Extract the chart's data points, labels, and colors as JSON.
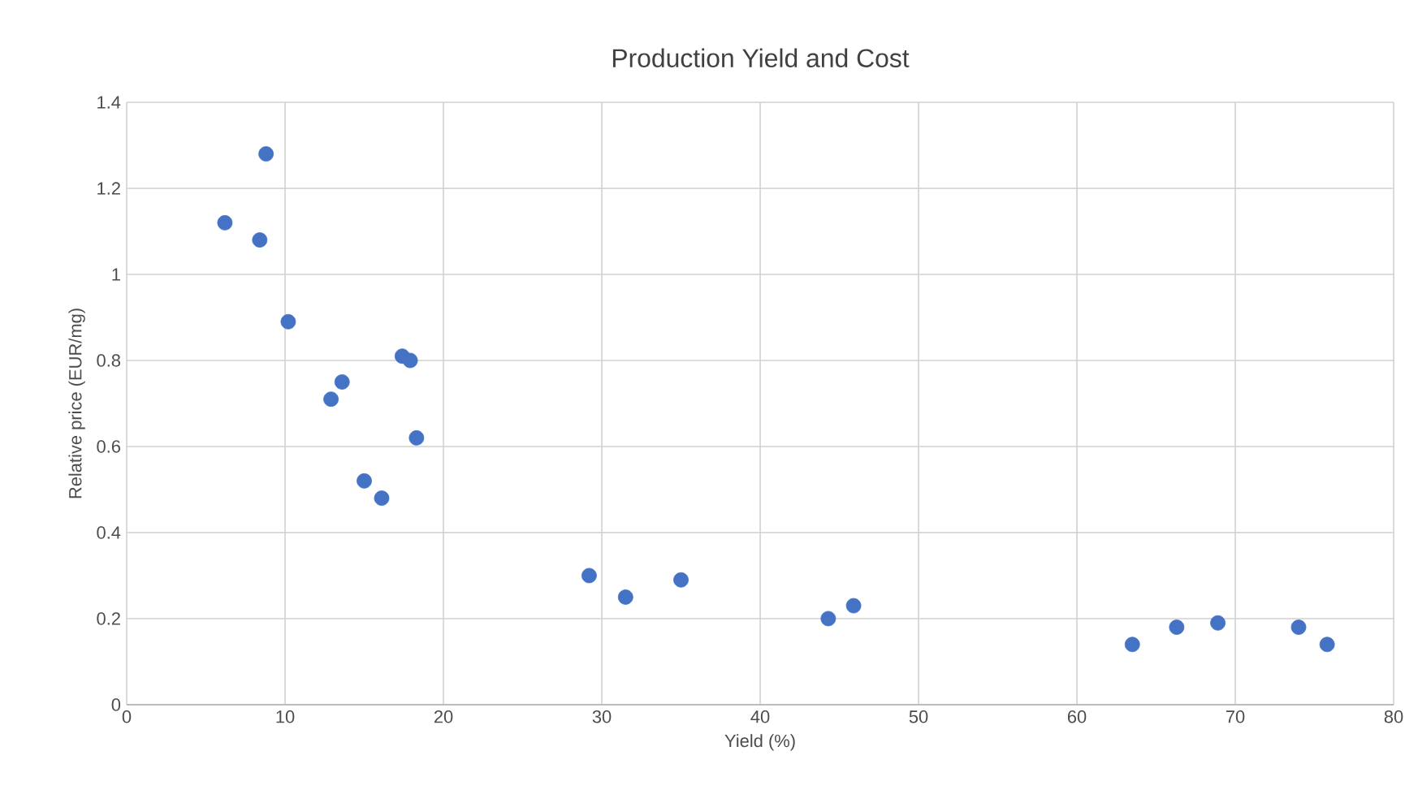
{
  "chart_data": {
    "type": "scatter",
    "title": "Production Yield and Cost",
    "xlabel": "Yield (%)",
    "ylabel": "Relative price (EUR/mg)",
    "x": [
      6.2,
      8.8,
      8.4,
      10.2,
      12.9,
      13.6,
      15.0,
      16.1,
      17.4,
      17.9,
      18.3,
      29.2,
      31.5,
      35.0,
      44.3,
      45.9,
      63.5,
      66.3,
      68.9,
      74.0,
      75.8
    ],
    "values": [
      1.12,
      1.28,
      1.08,
      0.89,
      0.71,
      0.75,
      0.52,
      0.48,
      0.81,
      0.8,
      0.62,
      0.3,
      0.25,
      0.29,
      0.2,
      0.23,
      0.14,
      0.18,
      0.19,
      0.18,
      0.14
    ],
    "color": "#4472c4",
    "marker": "circle",
    "grid": true,
    "xlim": [
      0,
      80
    ],
    "xticks": [
      0,
      10,
      20,
      30,
      40,
      50,
      60,
      70,
      80
    ],
    "ylim": [
      0,
      1.4
    ],
    "yticks": [
      0,
      {
        "value": 0.2,
        "label": "0.2"
      },
      {
        "value": 0.4,
        "label": "0.4"
      },
      {
        "value": 0.6,
        "label": "0.6"
      },
      {
        "value": 0.8,
        "label": "0.8"
      },
      1,
      {
        "value": 1.2,
        "label": "1.2"
      },
      {
        "value": 1.4,
        "label": "1.4"
      }
    ]
  }
}
